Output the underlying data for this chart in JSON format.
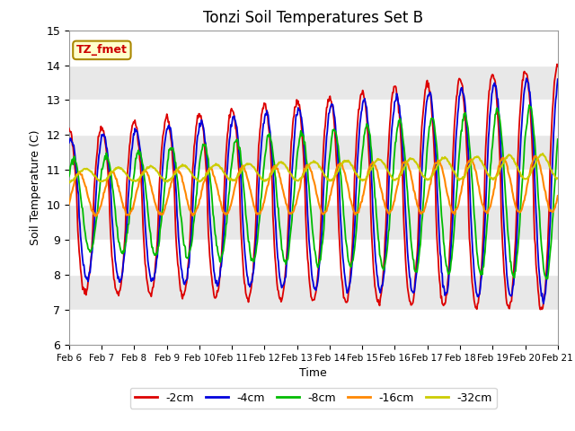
{
  "title": "Tonzi Soil Temperatures Set B",
  "xlabel": "Time",
  "ylabel": "Soil Temperature (C)",
  "ylim": [
    6.0,
    15.0
  ],
  "yticks": [
    6.0,
    7.0,
    8.0,
    9.0,
    10.0,
    11.0,
    12.0,
    13.0,
    14.0,
    15.0
  ],
  "colors": {
    "-2cm": "#dd0000",
    "-4cm": "#0000dd",
    "-8cm": "#00bb00",
    "-16cm": "#ff8800",
    "-32cm": "#cccc00"
  },
  "legend_label": "TZ_fmet",
  "legend_box_facecolor": "#ffffcc",
  "legend_box_edgecolor": "#aa8800",
  "plot_bg_white": "#ffffff",
  "plot_bg_gray": "#e8e8e8",
  "fig_bg": "#ffffff",
  "n_points": 720,
  "n_days": 15
}
